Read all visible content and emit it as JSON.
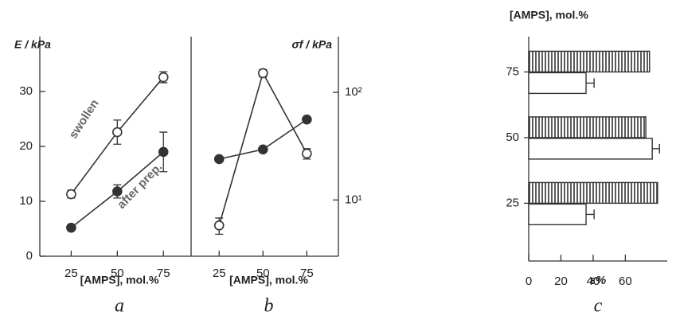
{
  "chart_data": [
    {
      "type": "line",
      "panel": "a",
      "ylabel": "E / kPa",
      "xlabel": "[AMPS], mol.%",
      "x": [
        25,
        50,
        75
      ],
      "xlim": [
        8,
        90
      ],
      "xticks": [
        25,
        50,
        75
      ],
      "ylim": [
        0,
        40
      ],
      "yticks": [
        0,
        10,
        20,
        30
      ],
      "yscale": "linear",
      "yaxis_side": "left",
      "series": [
        {
          "name": "swollen",
          "color": "#333333",
          "marker_fill": "#ffffff",
          "values": [
            11.3,
            22.6,
            32.6
          ],
          "errors": [
            0.7,
            2.2,
            1.0
          ]
        },
        {
          "name": "after prep.",
          "color": "#333333",
          "marker_fill": "#333333",
          "values": [
            5.2,
            11.8,
            19.0
          ],
          "errors": [
            0.3,
            1.2,
            3.6
          ]
        }
      ]
    },
    {
      "type": "line",
      "panel": "b",
      "ylabel": "σf / kPa",
      "xlabel": "[AMPS], mol.%",
      "x": [
        25,
        50,
        75
      ],
      "xlim": [
        9,
        93
      ],
      "xticks": [
        25,
        50,
        75
      ],
      "ylim": [
        3,
        330
      ],
      "yticks": [
        {
          "value": 10,
          "label": "10¹"
        },
        {
          "value": 100,
          "label": "10²"
        }
      ],
      "yscale": "log",
      "yaxis_side": "right",
      "series": [
        {
          "color": "#333333",
          "marker_fill": "#ffffff",
          "values": [
            5.8,
            151,
            27
          ],
          "errors": [
            1,
            12,
            3
          ]
        },
        {
          "color": "#333333",
          "marker_fill": "#333333",
          "values": [
            24,
            29.5,
            56
          ]
        }
      ]
    },
    {
      "type": "bar",
      "orientation": "horizontal",
      "panel": "c",
      "ylabel": "[AMPS], mol.%",
      "xlabel": "ε%",
      "categories": [
        25,
        50,
        75
      ],
      "xlim": [
        0,
        86
      ],
      "xticks": [
        0,
        20,
        40,
        60
      ],
      "series": [
        {
          "fill": "hatch",
          "color": "#333333",
          "values": [
            80,
            72.7,
            75
          ]
        },
        {
          "fill": "plain",
          "color": "#333333",
          "values": [
            35.6,
            76.7,
            35.6
          ],
          "errors": [
            5,
            4.5,
            5
          ]
        }
      ]
    }
  ]
}
